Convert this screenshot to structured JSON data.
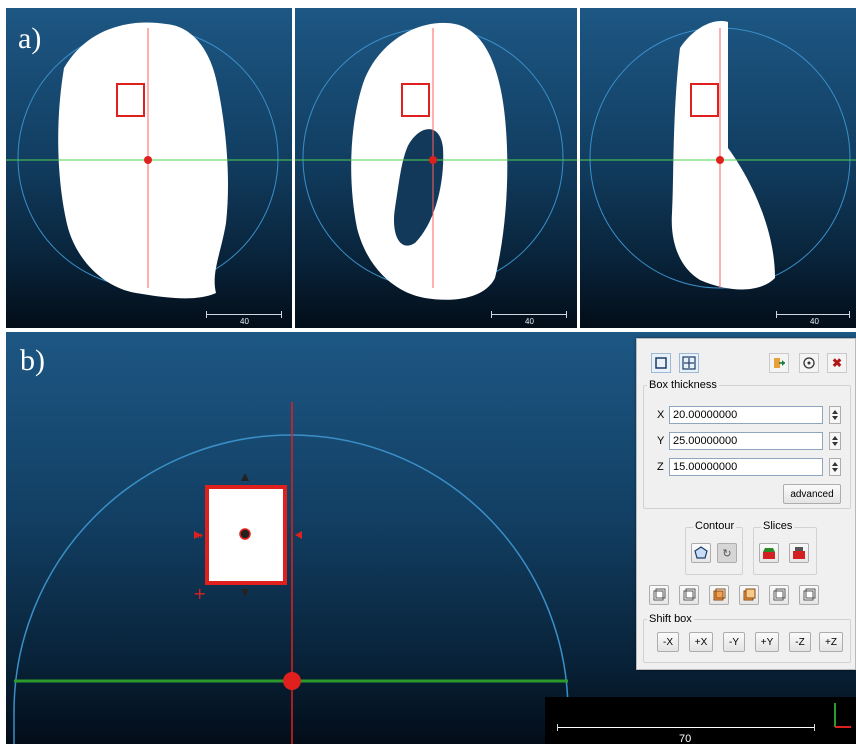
{
  "figure_labels": {
    "a": "a)",
    "b": "b)"
  },
  "top_views": [
    {
      "name": "view-front",
      "scale_label": "40"
    },
    {
      "name": "view-back",
      "scale_label": "40"
    },
    {
      "name": "view-side",
      "scale_label": "40"
    }
  ],
  "bottom_view": {
    "scale_label": "70"
  },
  "dialog": {
    "box_thickness_title": "Box thickness",
    "fields": [
      {
        "axis": "X",
        "value": "20.00000000"
      },
      {
        "axis": "Y",
        "value": "25.00000000"
      },
      {
        "axis": "Z",
        "value": "15.00000000"
      }
    ],
    "advanced_label": "advanced",
    "contour_title": "Contour",
    "slices_title": "Slices",
    "shift_box_title": "Shift box",
    "shift_buttons": [
      "-X",
      "+X",
      "-Y",
      "+Y",
      "-Z",
      "+Z"
    ],
    "toolbar_icons": [
      "box-select-icon",
      "center-icon",
      "export-icon",
      "reset-icon",
      "close-icon"
    ]
  },
  "colors": {
    "accent_red": "#e0201c",
    "axis_green": "#2a9a2a",
    "circle_blue": "#3a8fc8"
  }
}
